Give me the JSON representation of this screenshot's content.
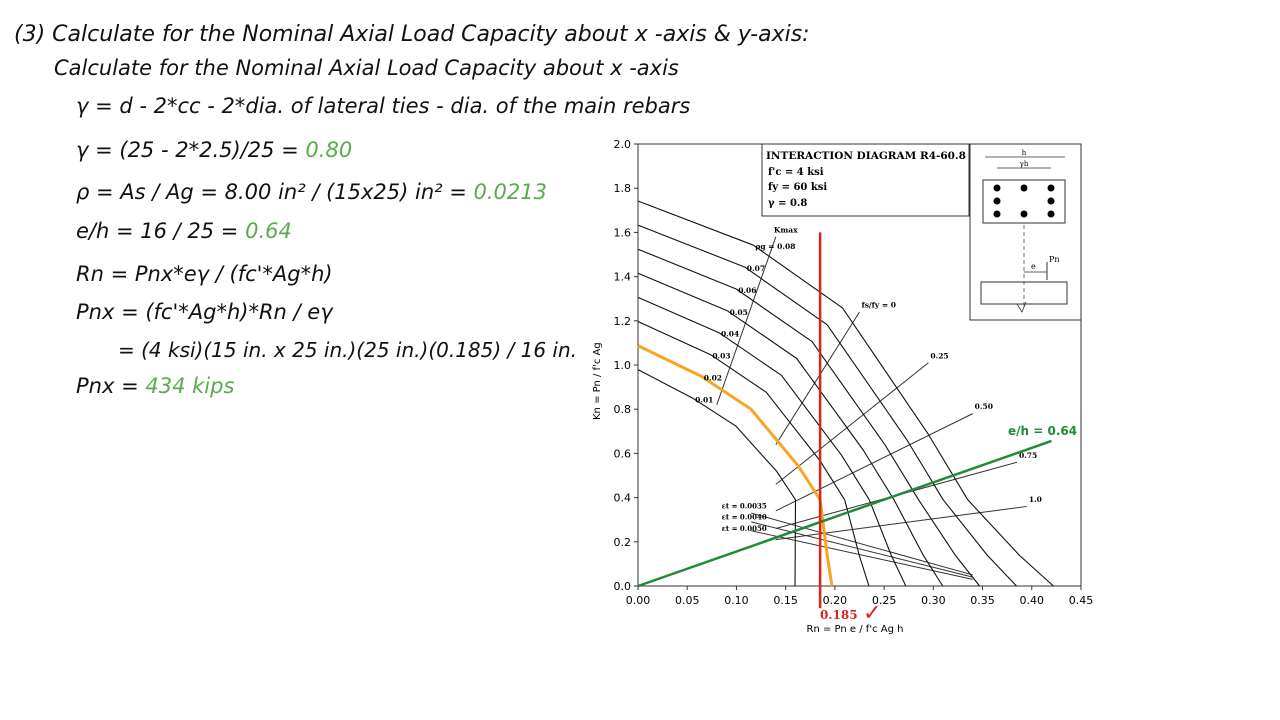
{
  "heading": "(3) Calculate for the Nominal Axial Load Capacity about x -axis & y-axis:",
  "subheading": "Calculate for the Nominal Axial Load Capacity about x -axis",
  "equations": [
    {
      "text": "γ = d - 2*cc - 2*dia. of lateral ties - dia. of the main rebars",
      "result": ""
    },
    {
      "text": "γ = (25 - 2*2.5)/25 = ",
      "result": "0.80"
    },
    {
      "text": "ρ = As / Ag = 8.00 in² / (15x25) in²  = ",
      "result": "0.0213"
    },
    {
      "text": "e/h = 16 / 25 = ",
      "result": "0.64"
    },
    {
      "text": "Rn = Pnx*eγ / (fc'*Ag*h)",
      "result": ""
    },
    {
      "text": "Pnx = (fc'*Ag*h)*Rn / eγ",
      "result": ""
    },
    {
      "text": "= (4 ksi)(15 in. x 25 in.)(25 in.)(0.185) / 16 in.",
      "result": ""
    },
    {
      "text": "Pnx = ",
      "result": "434 kips"
    }
  ],
  "diagram": {
    "legend_title": "INTERACTION DIAGRAM R4-60.8",
    "legend_lines": [
      "f'c = 4 ksi",
      "fy = 60 ksi",
      "γ = 0.8"
    ],
    "inset_labels": {
      "h": "h",
      "gh": "γh",
      "e": "e",
      "pn": "Pn"
    },
    "y_axis_label": "Kn = Pn / f'c Ag",
    "x_axis_label": "Rn = Pn e / f'c Ag h",
    "x_ticks": [
      "0.00",
      "0.05",
      "0.10",
      "0.15",
      "0.20",
      "0.25",
      "0.30",
      "0.35",
      "0.40",
      "0.45"
    ],
    "y_ticks": [
      "0.0",
      "0.2",
      "0.4",
      "0.6",
      "0.8",
      "1.0",
      "1.2",
      "1.4",
      "1.6",
      "1.8",
      "2.0"
    ],
    "rho_labels": [
      "ρg = 0.08",
      "0.07",
      "0.06",
      "0.05",
      "0.04",
      "0.03",
      "0.02",
      "0.01"
    ],
    "rho_values": [
      0.08,
      0.07,
      0.06,
      0.05,
      0.04,
      0.03,
      0.02,
      0.01
    ],
    "kmax_label": "Kmax",
    "fs_labels": [
      "fs/fy = 0",
      "0.25",
      "0.50",
      "0.75",
      "1.0"
    ],
    "strain_labels": [
      "εt = 0.0035",
      "εt = 0.0040",
      "εt = 0.0050"
    ],
    "eh_line_label": "e/h = 0.64",
    "eh_slope": 0.64,
    "rn_marker_value": 0.185,
    "rn_marker_label": "0.185",
    "check_mark": "✓",
    "colors": {
      "red": "#d9261c",
      "green": "#1f8a3a",
      "orange": "#f5a623",
      "result_green": "#5aab4e"
    }
  }
}
